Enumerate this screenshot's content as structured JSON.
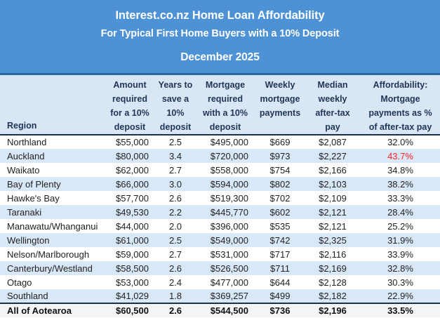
{
  "colors": {
    "banner_bg": "#4E92D6",
    "banner_divider": "#2B66A3",
    "header_bg": "#D9E6F5",
    "row_stripe": "#D9E8F8",
    "total_row_bg": "#F4F4F4",
    "heavy_rule": "#16324F",
    "alert_red": "#FF2020",
    "header_text": "#1F3555"
  },
  "chart_data": {
    "type": "table",
    "title": "Interest.co.nz Home Loan Affordability",
    "subtitle": "For Typical First Home Buyers with a 10% Deposit",
    "period": "December 2025",
    "columns": [
      {
        "key": "region",
        "label": "Region",
        "align": "left"
      },
      {
        "key": "deposit_amount",
        "label": "Amount\nrequired\nfor a 10%\ndeposit",
        "align": "right"
      },
      {
        "key": "years_to_save",
        "label": "Years to\nsave a\n10%\ndeposit",
        "align": "center"
      },
      {
        "key": "mortgage_required",
        "label": "Mortgage\nrequired\nwith a 10%\ndeposit",
        "align": "right"
      },
      {
        "key": "weekly_payment",
        "label": "Weekly\nmortgage\npayments",
        "align": "center"
      },
      {
        "key": "median_pay",
        "label": "Median\nweekly\nafter-tax\npay",
        "align": "center"
      },
      {
        "key": "affordability",
        "label": "Affordability:\nMortgage\npayments as %\nof after-tax pay",
        "align": "center"
      }
    ],
    "rows": [
      {
        "region": "Northland",
        "deposit_amount": "$55,000",
        "years_to_save": "2.5",
        "mortgage_required": "$495,000",
        "weekly_payment": "$669",
        "median_pay": "$2,087",
        "affordability": "32.0%"
      },
      {
        "region": "Auckland",
        "deposit_amount": "$80,000",
        "years_to_save": "3.4",
        "mortgage_required": "$720,000",
        "weekly_payment": "$973",
        "median_pay": "$2,227",
        "affordability": "43.7%",
        "affordability_alert": true
      },
      {
        "region": "Waikato",
        "deposit_amount": "$62,000",
        "years_to_save": "2.7",
        "mortgage_required": "$558,000",
        "weekly_payment": "$754",
        "median_pay": "$2,166",
        "affordability": "34.8%"
      },
      {
        "region": "Bay of Plenty",
        "deposit_amount": "$66,000",
        "years_to_save": "3.0",
        "mortgage_required": "$594,000",
        "weekly_payment": "$802",
        "median_pay": "$2,103",
        "affordability": "38.2%"
      },
      {
        "region": "Hawke's Bay",
        "deposit_amount": "$57,700",
        "years_to_save": "2.6",
        "mortgage_required": "$519,300",
        "weekly_payment": "$702",
        "median_pay": "$2,109",
        "affordability": "33.3%"
      },
      {
        "region": "Taranaki",
        "deposit_amount": "$49,530",
        "years_to_save": "2.2",
        "mortgage_required": "$445,770",
        "weekly_payment": "$602",
        "median_pay": "$2,121",
        "affordability": "28.4%"
      },
      {
        "region": "Manawatu/Whanganui",
        "deposit_amount": "$44,000",
        "years_to_save": "2.0",
        "mortgage_required": "$396,000",
        "weekly_payment": "$535",
        "median_pay": "$2,121",
        "affordability": "25.2%"
      },
      {
        "region": "Wellington",
        "deposit_amount": "$61,000",
        "years_to_save": "2.5",
        "mortgage_required": "$549,000",
        "weekly_payment": "$742",
        "median_pay": "$2,325",
        "affordability": "31.9%"
      },
      {
        "region": "Nelson/Marlborough",
        "deposit_amount": "$59,000",
        "years_to_save": "2.7",
        "mortgage_required": "$531,000",
        "weekly_payment": "$717",
        "median_pay": "$2,116",
        "affordability": "33.9%"
      },
      {
        "region": "Canterbury/Westland",
        "deposit_amount": "$58,500",
        "years_to_save": "2.6",
        "mortgage_required": "$526,500",
        "weekly_payment": "$711",
        "median_pay": "$2,169",
        "affordability": "32.8%"
      },
      {
        "region": "Otago",
        "deposit_amount": "$53,000",
        "years_to_save": "2.4",
        "mortgage_required": "$477,000",
        "weekly_payment": "$644",
        "median_pay": "$2,128",
        "affordability": "30.3%"
      },
      {
        "region": "Southland",
        "deposit_amount": "$41,029",
        "years_to_save": "1.8",
        "mortgage_required": "$369,257",
        "weekly_payment": "$499",
        "median_pay": "$2,182",
        "affordability": "22.9%"
      },
      {
        "region": "All of Aotearoa",
        "deposit_amount": "$60,500",
        "years_to_save": "2.6",
        "mortgage_required": "$544,500",
        "weekly_payment": "$736",
        "median_pay": "$2,196",
        "affordability": "33.5%",
        "is_total": true
      }
    ]
  }
}
